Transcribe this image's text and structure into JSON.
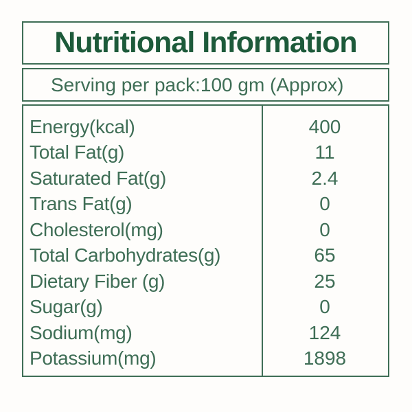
{
  "colors": {
    "title_text": "#1d5a3a",
    "body_text": "#3f6e56",
    "border": "#3f6e56",
    "background": "#fefdfb"
  },
  "header": {
    "title": "Nutritional Information"
  },
  "serving": {
    "label": "Serving per pack:100 gm (Approx)"
  },
  "table": {
    "rows": [
      {
        "label": "Energy(kcal)",
        "value": "400"
      },
      {
        "label": "Total Fat(g)",
        "value": "11"
      },
      {
        "label": "Saturated Fat(g)",
        "value": "2.4"
      },
      {
        "label": "Trans Fat(g)",
        "value": "0"
      },
      {
        "label": "Cholesterol(mg)",
        "value": "0"
      },
      {
        "label": "Total Carbohydrates(g)",
        "value": "65"
      },
      {
        "label": "Dietary Fiber (g)",
        "value": "25"
      },
      {
        "label": "Sugar(g)",
        "value": "0"
      },
      {
        "label": "Sodium(mg)",
        "value": "124"
      },
      {
        "label": "Potassium(mg)",
        "value": "1898"
      }
    ]
  }
}
